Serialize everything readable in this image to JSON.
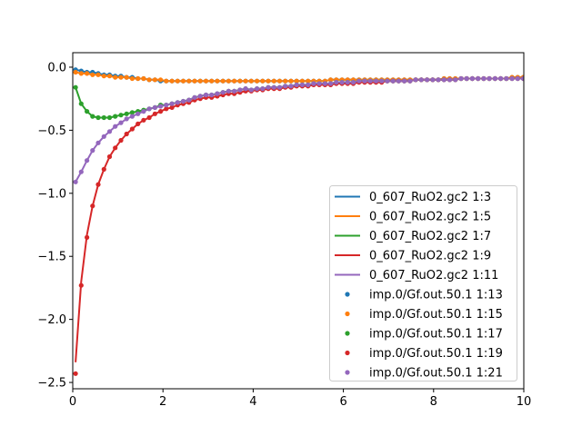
{
  "chart_data": {
    "type": "line",
    "title": "",
    "xlabel": "",
    "ylabel": "",
    "xlim": [
      0,
      10
    ],
    "ylim": [
      -2.55,
      0.115
    ],
    "grid": false,
    "legend_position": "lower-right",
    "x_ticks": [
      0,
      2,
      4,
      6,
      8,
      10
    ],
    "x_tick_labels": [
      "0",
      "2",
      "4",
      "6",
      "8",
      "10"
    ],
    "y_ticks": [
      0.0,
      -0.5,
      -1.0,
      -1.5,
      -2.0,
      -2.5
    ],
    "y_tick_labels": [
      "0.0",
      "−0.5",
      "−1.0",
      "−1.5",
      "−2.0",
      "−2.5"
    ],
    "x": [
      0.063,
      0.188,
      0.314,
      0.44,
      0.565,
      0.691,
      0.817,
      0.942,
      1.068,
      1.194,
      1.319,
      1.445,
      1.571,
      1.696,
      1.822,
      1.948,
      2.073,
      2.199,
      2.325,
      2.45,
      2.576,
      2.702,
      2.827,
      2.953,
      3.079,
      3.204,
      3.33,
      3.456,
      3.581,
      3.707,
      3.833,
      3.958,
      4.084,
      4.21,
      4.335,
      4.461,
      4.587,
      4.712,
      4.838,
      4.964,
      5.089,
      5.215,
      5.341,
      5.466,
      5.592,
      5.718,
      5.843,
      5.969,
      6.095,
      6.22,
      6.346,
      6.472,
      6.597,
      6.723,
      6.849,
      6.974,
      7.1,
      7.226,
      7.351,
      7.477,
      7.603,
      7.728,
      7.854,
      7.98,
      8.105,
      8.231,
      8.357,
      8.482,
      8.608,
      8.734,
      8.859,
      8.985,
      9.111,
      9.236,
      9.362,
      9.488,
      9.613,
      9.739,
      9.865,
      9.99
    ],
    "line_series": [
      {
        "name": "0_607_RuO2.gc2 1:3",
        "color": "#1f77b4",
        "y": [
          -0.02,
          -0.03,
          -0.04,
          -0.04,
          -0.05,
          -0.06,
          -0.06,
          -0.07,
          -0.07,
          -0.08,
          -0.08,
          -0.09,
          -0.09,
          -0.1,
          -0.1,
          -0.11,
          -0.11,
          -0.11,
          -0.11,
          -0.11,
          -0.11,
          -0.11,
          -0.11,
          -0.11,
          -0.11,
          -0.11,
          -0.11,
          -0.11,
          -0.11,
          -0.11,
          -0.11,
          -0.11,
          -0.11,
          -0.11,
          -0.11,
          -0.11,
          -0.11,
          -0.11,
          -0.11,
          -0.11,
          -0.11,
          -0.11,
          -0.11,
          -0.11,
          -0.11,
          -0.1,
          -0.1,
          -0.1,
          -0.1,
          -0.1,
          -0.1,
          -0.1,
          -0.1,
          -0.1,
          -0.1,
          -0.1,
          -0.1,
          -0.1,
          -0.1,
          -0.1,
          -0.1,
          -0.1,
          -0.1,
          -0.1,
          -0.1,
          -0.09,
          -0.09,
          -0.09,
          -0.09,
          -0.09,
          -0.09,
          -0.09,
          -0.09,
          -0.09,
          -0.09,
          -0.09,
          -0.09,
          -0.08,
          -0.08,
          -0.08
        ]
      },
      {
        "name": "0_607_RuO2.gc2 1:5",
        "color": "#ff7f0e",
        "y": [
          -0.04,
          -0.05,
          -0.05,
          -0.06,
          -0.06,
          -0.07,
          -0.07,
          -0.08,
          -0.08,
          -0.08,
          -0.09,
          -0.09,
          -0.09,
          -0.1,
          -0.1,
          -0.1,
          -0.11,
          -0.11,
          -0.11,
          -0.11,
          -0.11,
          -0.11,
          -0.11,
          -0.11,
          -0.11,
          -0.11,
          -0.11,
          -0.11,
          -0.11,
          -0.11,
          -0.11,
          -0.11,
          -0.11,
          -0.11,
          -0.11,
          -0.11,
          -0.11,
          -0.11,
          -0.11,
          -0.11,
          -0.11,
          -0.11,
          -0.11,
          -0.11,
          -0.11,
          -0.1,
          -0.1,
          -0.1,
          -0.1,
          -0.1,
          -0.1,
          -0.1,
          -0.1,
          -0.1,
          -0.1,
          -0.1,
          -0.1,
          -0.1,
          -0.1,
          -0.1,
          -0.1,
          -0.1,
          -0.1,
          -0.1,
          -0.1,
          -0.09,
          -0.09,
          -0.09,
          -0.09,
          -0.09,
          -0.09,
          -0.09,
          -0.09,
          -0.09,
          -0.09,
          -0.09,
          -0.09,
          -0.08,
          -0.08,
          -0.08
        ]
      },
      {
        "name": "0_607_RuO2.gc2 1:7",
        "color": "#2ca02c",
        "y": [
          -0.16,
          -0.29,
          -0.35,
          -0.39,
          -0.4,
          -0.4,
          -0.4,
          -0.39,
          -0.38,
          -0.37,
          -0.36,
          -0.35,
          -0.34,
          -0.33,
          -0.32,
          -0.3,
          -0.3,
          -0.29,
          -0.28,
          -0.27,
          -0.26,
          -0.24,
          -0.23,
          -0.22,
          -0.22,
          -0.21,
          -0.2,
          -0.19,
          -0.19,
          -0.18,
          -0.17,
          -0.18,
          -0.17,
          -0.17,
          -0.16,
          -0.16,
          -0.16,
          -0.15,
          -0.15,
          -0.14,
          -0.14,
          -0.14,
          -0.13,
          -0.13,
          -0.13,
          -0.13,
          -0.12,
          -0.12,
          -0.12,
          -0.12,
          -0.11,
          -0.11,
          -0.11,
          -0.11,
          -0.11,
          -0.11,
          -0.11,
          -0.11,
          -0.11,
          -0.11,
          -0.1,
          -0.1,
          -0.1,
          -0.1,
          -0.1,
          -0.1,
          -0.1,
          -0.1,
          -0.09,
          -0.09,
          -0.09,
          -0.09,
          -0.09,
          -0.09,
          -0.09,
          -0.09,
          -0.09,
          -0.09,
          -0.09,
          -0.09
        ]
      },
      {
        "name": "0_607_RuO2.gc2 1:9",
        "color": "#d62728",
        "y": [
          -2.34,
          -1.7,
          -1.33,
          -1.1,
          -0.93,
          -0.81,
          -0.71,
          -0.64,
          -0.58,
          -0.53,
          -0.49,
          -0.45,
          -0.42,
          -0.4,
          -0.37,
          -0.35,
          -0.33,
          -0.32,
          -0.3,
          -0.29,
          -0.28,
          -0.26,
          -0.25,
          -0.24,
          -0.24,
          -0.23,
          -0.22,
          -0.21,
          -0.21,
          -0.2,
          -0.19,
          -0.19,
          -0.18,
          -0.18,
          -0.17,
          -0.17,
          -0.17,
          -0.16,
          -0.16,
          -0.15,
          -0.15,
          -0.15,
          -0.14,
          -0.14,
          -0.14,
          -0.14,
          -0.13,
          -0.13,
          -0.13,
          -0.13,
          -0.12,
          -0.12,
          -0.12,
          -0.12,
          -0.12,
          -0.11,
          -0.11,
          -0.11,
          -0.11,
          -0.11,
          -0.1,
          -0.1,
          -0.1,
          -0.1,
          -0.1,
          -0.1,
          -0.1,
          -0.1,
          -0.09,
          -0.09,
          -0.09,
          -0.09,
          -0.09,
          -0.09,
          -0.09,
          -0.09,
          -0.09,
          -0.09,
          -0.09,
          -0.09
        ]
      },
      {
        "name": "0_607_RuO2.gc2 1:11",
        "color": "#9467bd",
        "y": [
          -0.91,
          -0.83,
          -0.74,
          -0.66,
          -0.6,
          -0.55,
          -0.51,
          -0.47,
          -0.44,
          -0.41,
          -0.39,
          -0.37,
          -0.35,
          -0.33,
          -0.32,
          -0.31,
          -0.3,
          -0.29,
          -0.28,
          -0.27,
          -0.26,
          -0.24,
          -0.23,
          -0.22,
          -0.22,
          -0.21,
          -0.2,
          -0.19,
          -0.19,
          -0.18,
          -0.17,
          -0.18,
          -0.17,
          -0.17,
          -0.16,
          -0.16,
          -0.16,
          -0.15,
          -0.15,
          -0.14,
          -0.14,
          -0.14,
          -0.13,
          -0.13,
          -0.13,
          -0.13,
          -0.12,
          -0.12,
          -0.12,
          -0.12,
          -0.11,
          -0.11,
          -0.11,
          -0.11,
          -0.11,
          -0.11,
          -0.11,
          -0.11,
          -0.11,
          -0.11,
          -0.1,
          -0.1,
          -0.1,
          -0.1,
          -0.1,
          -0.1,
          -0.1,
          -0.1,
          -0.09,
          -0.09,
          -0.09,
          -0.09,
          -0.09,
          -0.09,
          -0.09,
          -0.09,
          -0.09,
          -0.09,
          -0.09,
          -0.09
        ]
      }
    ],
    "point_series": [
      {
        "name": "imp.0/Gf.out.50.1 1:13",
        "color": "#1f77b4",
        "y": [
          -0.02,
          -0.03,
          -0.04,
          -0.04,
          -0.05,
          -0.06,
          -0.06,
          -0.07,
          -0.07,
          -0.08,
          -0.08,
          -0.09,
          -0.09,
          -0.1,
          -0.1,
          -0.11,
          -0.11,
          -0.11,
          -0.11,
          -0.11,
          -0.11,
          -0.11,
          -0.11,
          -0.11,
          -0.11,
          -0.11,
          -0.11,
          -0.11,
          -0.11,
          -0.11,
          -0.11,
          -0.11,
          -0.11,
          -0.11,
          -0.11,
          -0.11,
          -0.11,
          -0.11,
          -0.11,
          -0.11,
          -0.11,
          -0.11,
          -0.11,
          -0.11,
          -0.11,
          -0.1,
          -0.1,
          -0.1,
          -0.1,
          -0.1,
          -0.1,
          -0.1,
          -0.1,
          -0.1,
          -0.1,
          -0.1,
          -0.1,
          -0.1,
          -0.1,
          -0.1,
          -0.1,
          -0.1,
          -0.1,
          -0.1,
          -0.1,
          -0.09,
          -0.09,
          -0.09,
          -0.09,
          -0.09,
          -0.09,
          -0.09,
          -0.09,
          -0.09,
          -0.09,
          -0.09,
          -0.09,
          -0.08,
          -0.08,
          -0.08
        ]
      },
      {
        "name": "imp.0/Gf.out.50.1 1:15",
        "color": "#ff7f0e",
        "y": [
          -0.04,
          -0.05,
          -0.05,
          -0.06,
          -0.06,
          -0.07,
          -0.07,
          -0.08,
          -0.08,
          -0.08,
          -0.09,
          -0.09,
          -0.09,
          -0.1,
          -0.1,
          -0.1,
          -0.11,
          -0.11,
          -0.11,
          -0.11,
          -0.11,
          -0.11,
          -0.11,
          -0.11,
          -0.11,
          -0.11,
          -0.11,
          -0.11,
          -0.11,
          -0.11,
          -0.11,
          -0.11,
          -0.11,
          -0.11,
          -0.11,
          -0.11,
          -0.11,
          -0.11,
          -0.11,
          -0.11,
          -0.11,
          -0.11,
          -0.11,
          -0.11,
          -0.11,
          -0.1,
          -0.1,
          -0.1,
          -0.1,
          -0.1,
          -0.1,
          -0.1,
          -0.1,
          -0.1,
          -0.1,
          -0.1,
          -0.1,
          -0.1,
          -0.1,
          -0.1,
          -0.1,
          -0.1,
          -0.1,
          -0.1,
          -0.1,
          -0.09,
          -0.09,
          -0.09,
          -0.09,
          -0.09,
          -0.09,
          -0.09,
          -0.09,
          -0.09,
          -0.09,
          -0.09,
          -0.09,
          -0.08,
          -0.08,
          -0.08
        ]
      },
      {
        "name": "imp.0/Gf.out.50.1 1:17",
        "color": "#2ca02c",
        "y": [
          -0.16,
          -0.29,
          -0.35,
          -0.39,
          -0.4,
          -0.4,
          -0.4,
          -0.39,
          -0.38,
          -0.37,
          -0.36,
          -0.35,
          -0.34,
          -0.33,
          -0.32,
          -0.3,
          -0.3,
          -0.29,
          -0.28,
          -0.27,
          -0.26,
          -0.24,
          -0.23,
          -0.22,
          -0.22,
          -0.21,
          -0.2,
          -0.19,
          -0.19,
          -0.18,
          -0.17,
          -0.18,
          -0.17,
          -0.17,
          -0.16,
          -0.16,
          -0.16,
          -0.15,
          -0.15,
          -0.14,
          -0.14,
          -0.14,
          -0.13,
          -0.13,
          -0.13,
          -0.13,
          -0.12,
          -0.12,
          -0.12,
          -0.12,
          -0.11,
          -0.11,
          -0.11,
          -0.11,
          -0.11,
          -0.11,
          -0.11,
          -0.11,
          -0.11,
          -0.11,
          -0.1,
          -0.1,
          -0.1,
          -0.1,
          -0.1,
          -0.1,
          -0.1,
          -0.1,
          -0.09,
          -0.09,
          -0.09,
          -0.09,
          -0.09,
          -0.09,
          -0.09,
          -0.09,
          -0.09,
          -0.09,
          -0.09,
          -0.09
        ]
      },
      {
        "name": "imp.0/Gf.out.50.1 1:19",
        "color": "#d62728",
        "y": [
          -2.43,
          -1.73,
          -1.35,
          -1.1,
          -0.93,
          -0.81,
          -0.71,
          -0.64,
          -0.58,
          -0.53,
          -0.49,
          -0.45,
          -0.42,
          -0.4,
          -0.37,
          -0.35,
          -0.33,
          -0.32,
          -0.3,
          -0.29,
          -0.28,
          -0.26,
          -0.25,
          -0.24,
          -0.24,
          -0.23,
          -0.22,
          -0.21,
          -0.21,
          -0.2,
          -0.19,
          -0.19,
          -0.18,
          -0.18,
          -0.17,
          -0.17,
          -0.17,
          -0.16,
          -0.16,
          -0.15,
          -0.15,
          -0.15,
          -0.14,
          -0.14,
          -0.14,
          -0.14,
          -0.13,
          -0.13,
          -0.13,
          -0.13,
          -0.12,
          -0.12,
          -0.12,
          -0.12,
          -0.12,
          -0.11,
          -0.11,
          -0.11,
          -0.11,
          -0.11,
          -0.1,
          -0.1,
          -0.1,
          -0.1,
          -0.1,
          -0.1,
          -0.1,
          -0.1,
          -0.09,
          -0.09,
          -0.09,
          -0.09,
          -0.09,
          -0.09,
          -0.09,
          -0.09,
          -0.09,
          -0.09,
          -0.09,
          -0.09
        ]
      },
      {
        "name": "imp.0/Gf.out.50.1 1:21",
        "color": "#9467bd",
        "y": [
          -0.91,
          -0.83,
          -0.74,
          -0.66,
          -0.6,
          -0.55,
          -0.51,
          -0.47,
          -0.44,
          -0.41,
          -0.39,
          -0.37,
          -0.35,
          -0.33,
          -0.32,
          -0.31,
          -0.3,
          -0.29,
          -0.28,
          -0.27,
          -0.26,
          -0.24,
          -0.23,
          -0.22,
          -0.22,
          -0.21,
          -0.2,
          -0.19,
          -0.19,
          -0.18,
          -0.17,
          -0.18,
          -0.17,
          -0.17,
          -0.16,
          -0.16,
          -0.16,
          -0.15,
          -0.15,
          -0.14,
          -0.14,
          -0.14,
          -0.13,
          -0.13,
          -0.13,
          -0.13,
          -0.12,
          -0.12,
          -0.12,
          -0.12,
          -0.11,
          -0.11,
          -0.11,
          -0.11,
          -0.11,
          -0.11,
          -0.11,
          -0.11,
          -0.11,
          -0.11,
          -0.1,
          -0.1,
          -0.1,
          -0.1,
          -0.1,
          -0.1,
          -0.1,
          -0.1,
          -0.09,
          -0.09,
          -0.09,
          -0.09,
          -0.09,
          -0.09,
          -0.09,
          -0.09,
          -0.09,
          -0.09,
          -0.09,
          -0.09
        ]
      }
    ]
  }
}
